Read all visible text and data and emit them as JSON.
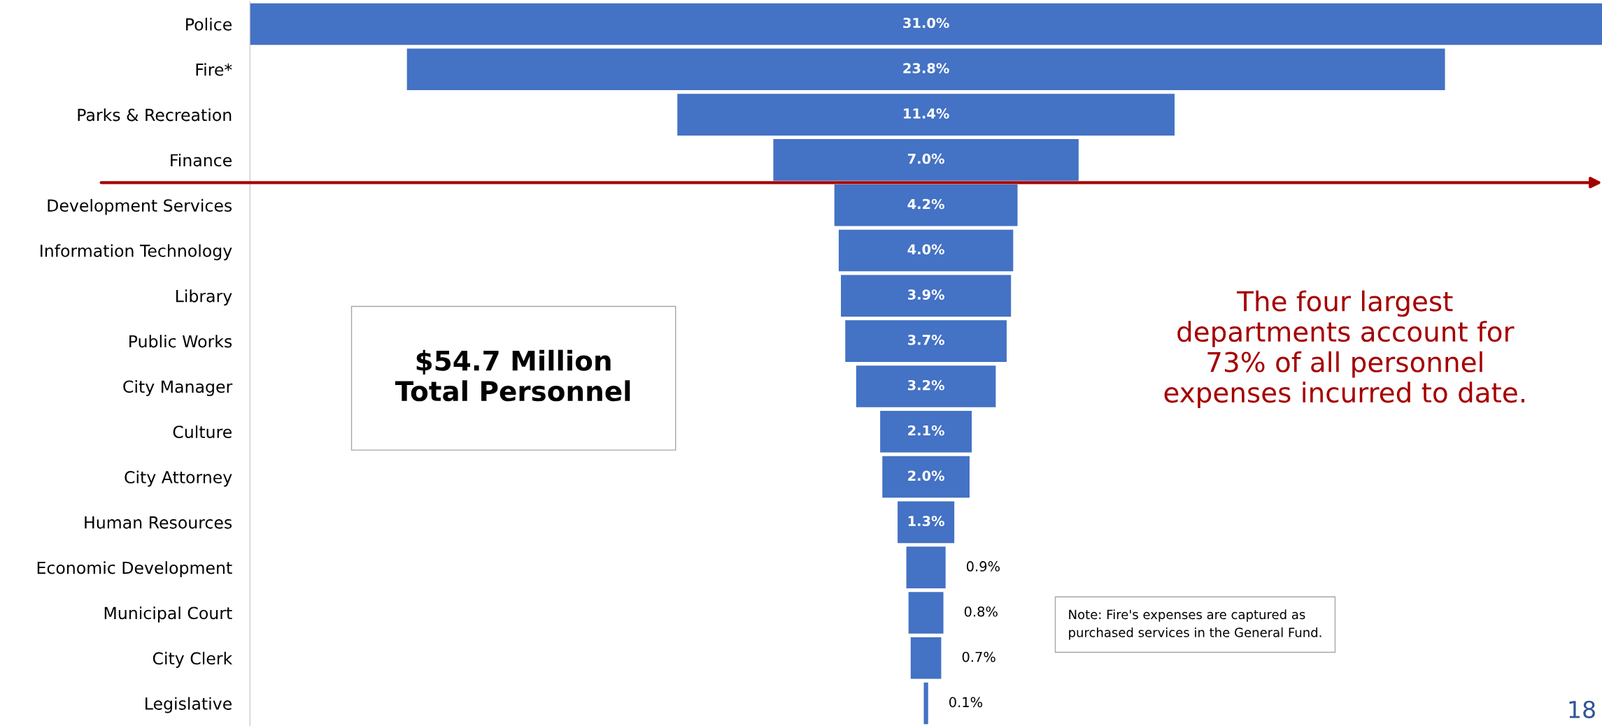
{
  "chart_data": {
    "type": "other",
    "categories": [
      "Police",
      "Fire*",
      "Parks & Recreation",
      "Finance",
      "Development Services",
      "Information Technology",
      "Library",
      "Public Works",
      "City Manager",
      "Culture",
      "City Attorney",
      "Human Resources",
      "Economic Development",
      "Municipal Court",
      "City Clerk",
      "Legislative"
    ],
    "values": [
      31.0,
      23.8,
      11.4,
      7.0,
      4.2,
      4.0,
      3.9,
      3.7,
      3.2,
      2.1,
      2.0,
      1.3,
      0.9,
      0.8,
      0.7,
      0.1
    ],
    "value_labels": [
      "31.0%",
      "23.8%",
      "11.4%",
      "7.0%",
      "4.2%",
      "4.0%",
      "3.9%",
      "3.7%",
      "3.2%",
      "2.1%",
      "2.0%",
      "1.3%",
      "0.9%",
      "0.8%",
      "0.7%",
      "0.1%"
    ],
    "color": "#4472c4",
    "annotations": [
      "$54.7 Million\nTotal Personnel",
      "The four largest\ndepartments account for\n73% of all personnel\nexpenses incurred to date.",
      "Note: Fire's expenses are captured as\npurchased services in the General Fund.",
      "18"
    ]
  }
}
